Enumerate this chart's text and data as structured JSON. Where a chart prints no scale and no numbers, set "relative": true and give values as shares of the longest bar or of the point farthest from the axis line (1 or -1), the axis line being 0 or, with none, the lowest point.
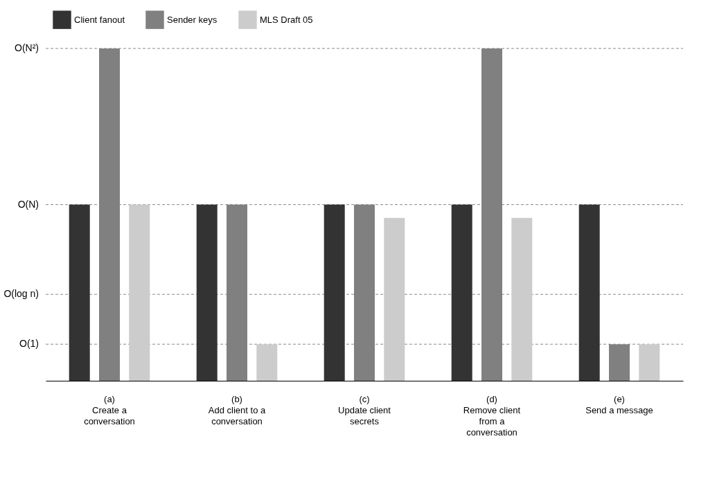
{
  "chart_data": {
    "type": "bar",
    "categories": [
      "(a)\nCreate a\nconversation",
      "(b)\nAdd client to a\nconversation",
      "(c)\nUpdate client\nsecrets",
      "(d)\nRemove client\nfrom a\nconversation",
      "(e)\nSend a message"
    ],
    "series": [
      {
        "name": "Client fanout",
        "color": "#333333",
        "values": [
          0.53,
          0.53,
          0.53,
          0.53,
          0.53
        ]
      },
      {
        "name": "Sender keys",
        "color": "#808080",
        "values": [
          1,
          0.53,
          0.53,
          1,
          0.11
        ]
      },
      {
        "name": "MLS Draft 05",
        "color": "#cccccc",
        "values": [
          0.53,
          0.11,
          0.49,
          0.49,
          0.11
        ]
      }
    ],
    "relative": true,
    "ref_lines": [
      {
        "axis": "y",
        "value": 0.11,
        "label": "O(1)",
        "line_style": "dashed"
      },
      {
        "axis": "y",
        "value": 0.26,
        "label": "O(log n)",
        "line_style": "dashed"
      },
      {
        "axis": "y",
        "value": 0.53,
        "label": "O(N)",
        "line_style": "dashed"
      },
      {
        "axis": "y",
        "value": 1,
        "label": "O(N²)",
        "line_style": "dashed"
      }
    ],
    "legend": "top"
  }
}
